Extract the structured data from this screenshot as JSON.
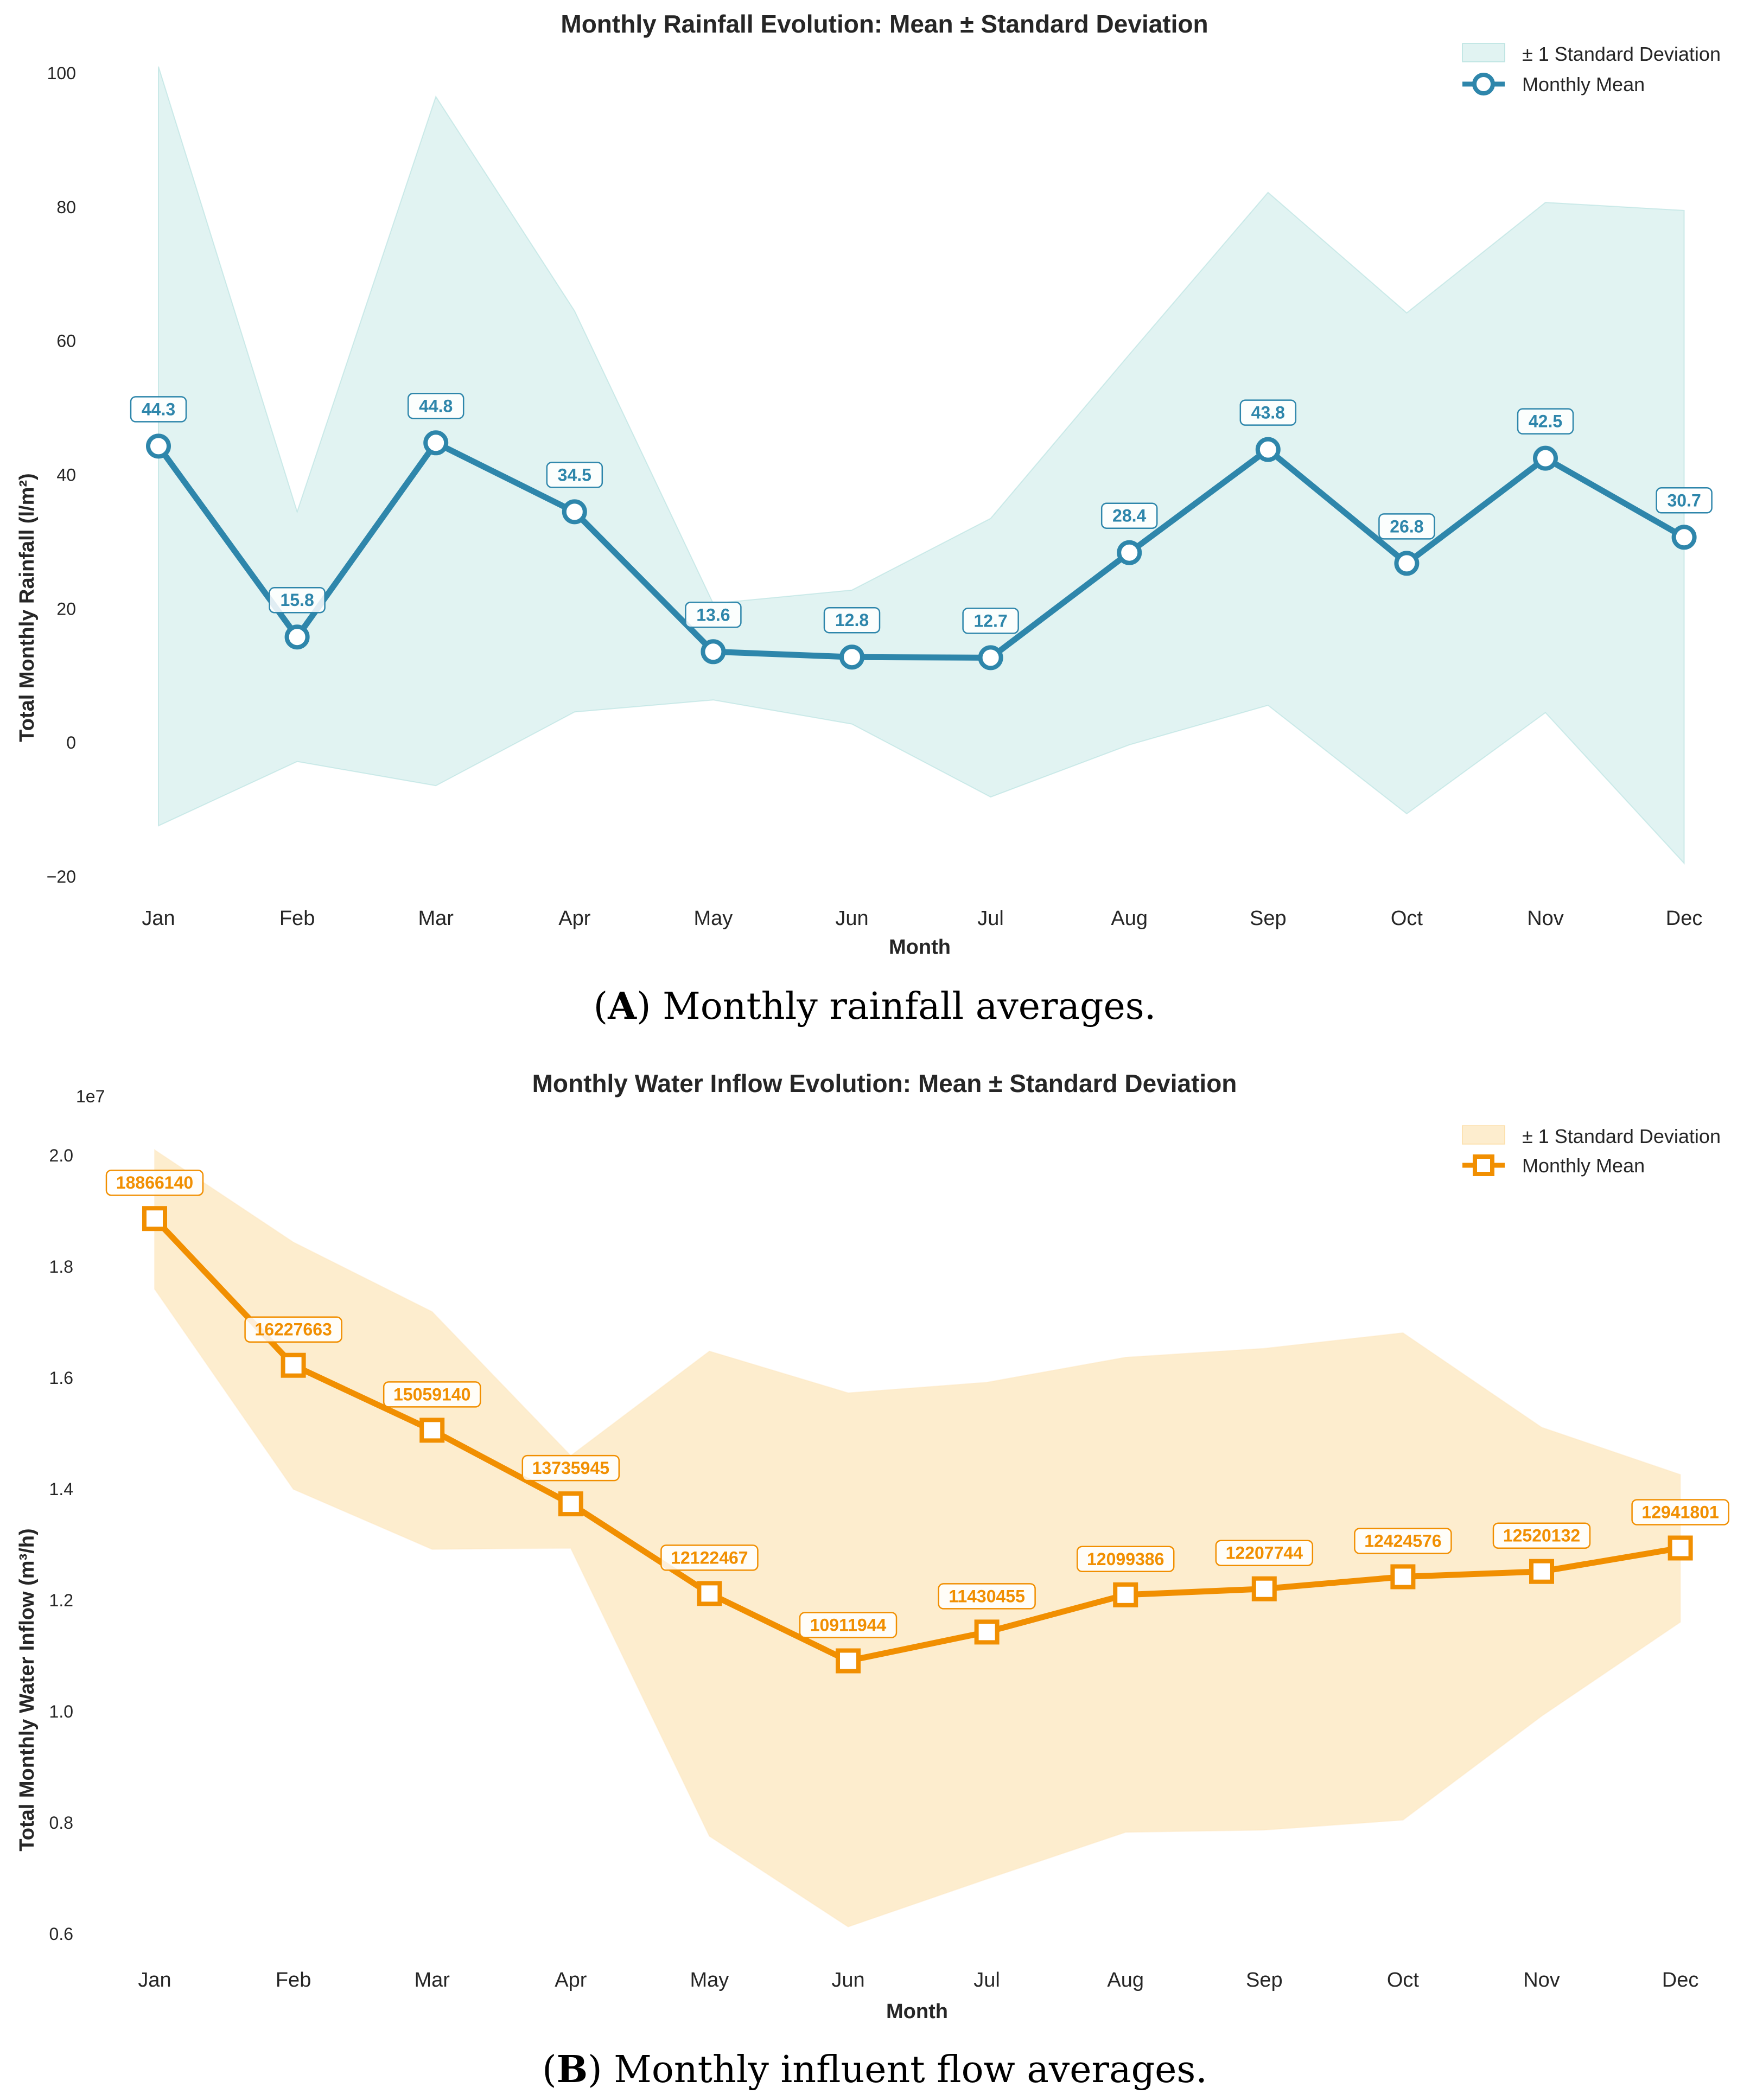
{
  "chart_data": [
    {
      "type": "line",
      "title": "Monthly Rainfall Evolution: Mean ± Standard Deviation",
      "xlabel": "Month",
      "ylabel": "Total Monthly Rainfall (l/m²)",
      "categories": [
        "Jan",
        "Feb",
        "Mar",
        "Apr",
        "May",
        "Jun",
        "Jul",
        "Aug",
        "Sep",
        "Oct",
        "Nov",
        "Dec"
      ],
      "series": [
        {
          "name": "Monthly Mean",
          "values": [
            44.3,
            15.8,
            44.8,
            34.5,
            13.6,
            12.8,
            12.7,
            28.4,
            43.8,
            26.8,
            42.5,
            30.7
          ]
        }
      ],
      "band": {
        "name": "± 1 Standard Deviation",
        "upper": [
          101,
          34.5,
          96.5,
          64.5,
          20.8,
          22.8,
          33.5,
          58,
          82.2,
          64.2,
          80.7,
          79.5
        ],
        "lower": [
          -12.4,
          -2.8,
          -6.4,
          4.6,
          6.4,
          2.8,
          -8.1,
          -0.3,
          5.6,
          -10.6,
          4.5,
          -18
        ]
      },
      "data_labels": [
        "44.3",
        "15.8",
        "44.8",
        "34.5",
        "13.6",
        "12.8",
        "12.7",
        "28.4",
        "43.8",
        "26.8",
        "42.5",
        "30.7"
      ],
      "ylim": [
        -25,
        105
      ],
      "yticks": [
        -20,
        0,
        20,
        40,
        60,
        80,
        100
      ],
      "ytick_labels": [
        "−20",
        "0",
        "20",
        "40",
        "60",
        "80",
        "100"
      ],
      "legend_position": "top-right",
      "colors": {
        "line": "#2e86ab",
        "band": "#a8dcd9",
        "marker_face": "#ffffff"
      },
      "grid": false
    },
    {
      "type": "line",
      "title": "Monthly Water Inflow Evolution: Mean ± Standard Deviation",
      "xlabel": "Month",
      "ylabel": "Total Monthly Water Inflow (m³/h)",
      "offset_label": "1e7",
      "categories": [
        "Jan",
        "Feb",
        "Mar",
        "Apr",
        "May",
        "Jun",
        "Jul",
        "Aug",
        "Sep",
        "Oct",
        "Nov",
        "Dec"
      ],
      "series": [
        {
          "name": "Monthly Mean",
          "values": [
            18866140,
            16227663,
            15059140,
            13735945,
            12122467,
            10911944,
            11430455,
            12099386,
            12207744,
            12424576,
            12520132,
            12941801
          ]
        }
      ],
      "band": {
        "name": "± 1 Standard Deviation",
        "upper": [
          20100000,
          18440000,
          17190000,
          14600000,
          16480000,
          15730000,
          15920000,
          16370000,
          16530000,
          16810000,
          15110000,
          14260000
        ],
        "lower": [
          17600000,
          14000000,
          12920000,
          12940000,
          7760000,
          6130000,
          6990000,
          7830000,
          7870000,
          8050000,
          9920000,
          11610000
        ]
      },
      "data_labels": [
        "18866140",
        "16227663",
        "15059140",
        "13735945",
        "12122467",
        "10911944",
        "11430455",
        "12099386",
        "12207744",
        "12424576",
        "12520132",
        "12941801"
      ],
      "ylim": [
        5500000,
        20500000
      ],
      "yticks": [
        6000000,
        8000000,
        10000000,
        12000000,
        14000000,
        16000000,
        18000000,
        20000000
      ],
      "ytick_labels": [
        "0.6",
        "0.8",
        "1.0",
        "1.2",
        "1.4",
        "1.6",
        "1.8",
        "2.0"
      ],
      "legend_position": "top-right",
      "colors": {
        "line": "#f18f01",
        "band": "#fde8c2",
        "marker_face": "#ffffff"
      },
      "grid": false
    }
  ],
  "captions": [
    {
      "letter": "A",
      "text": ") Monthly rainfall averages."
    },
    {
      "letter": "B",
      "text": ") Monthly influent flow averages."
    }
  ]
}
